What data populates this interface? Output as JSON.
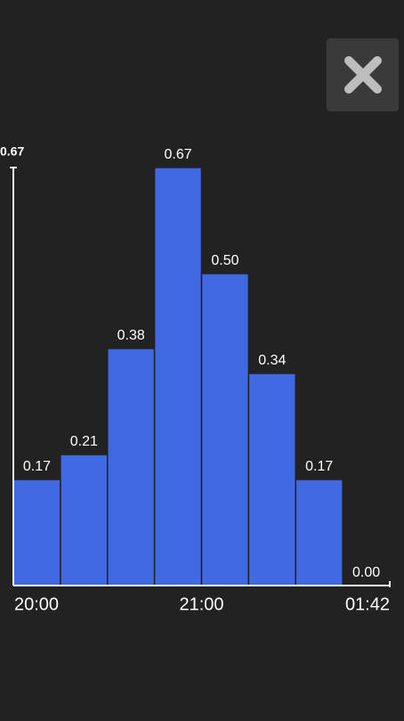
{
  "chart_data": {
    "type": "bar",
    "bin_edge_labels": [
      "20:00",
      null,
      null,
      null,
      "21:00",
      null,
      null,
      null,
      "01:42"
    ],
    "values": [
      0.17,
      0.21,
      0.38,
      0.67,
      0.5,
      0.34,
      0.17,
      0
    ],
    "value_labels": [
      "0.17",
      "0.21",
      "0.38",
      "0.67",
      "0.50",
      "0.34",
      "0.17",
      "0.00"
    ],
    "color": "#4169e1",
    "ylim": [
      0,
      0.67
    ],
    "yticks": [
      0.67
    ]
  }
}
